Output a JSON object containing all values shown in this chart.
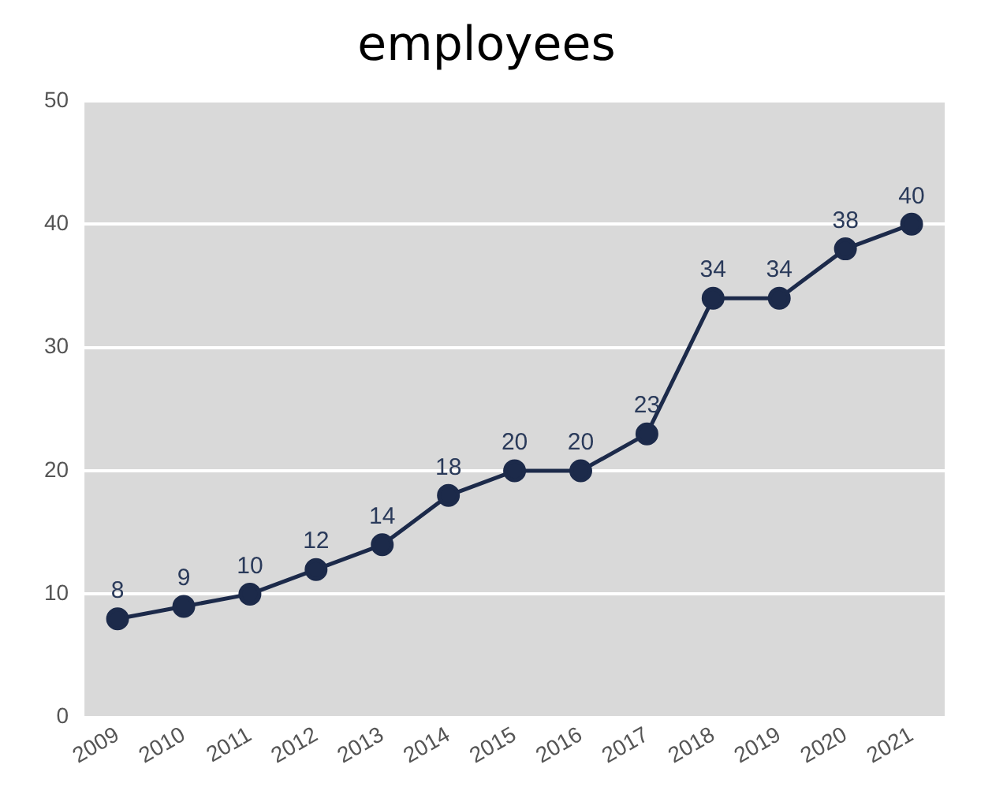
{
  "chart_data": {
    "type": "line",
    "title": "employees",
    "categories": [
      "2009",
      "2010",
      "2011",
      "2012",
      "2013",
      "2014",
      "2015",
      "2016",
      "2017",
      "2018",
      "2019",
      "2020",
      "2021"
    ],
    "series": [
      {
        "color": "#1c2a4a",
        "values": [
          8,
          9,
          10,
          12,
          14,
          18,
          20,
          20,
          23,
          34,
          34,
          38,
          40
        ]
      }
    ],
    "ylim": [
      0,
      50
    ],
    "yticks": [
      0,
      10,
      20,
      30,
      40,
      50
    ],
    "grid": "y",
    "legend": false,
    "marker": "circle",
    "line_style": "solid",
    "data_labels": true
  }
}
